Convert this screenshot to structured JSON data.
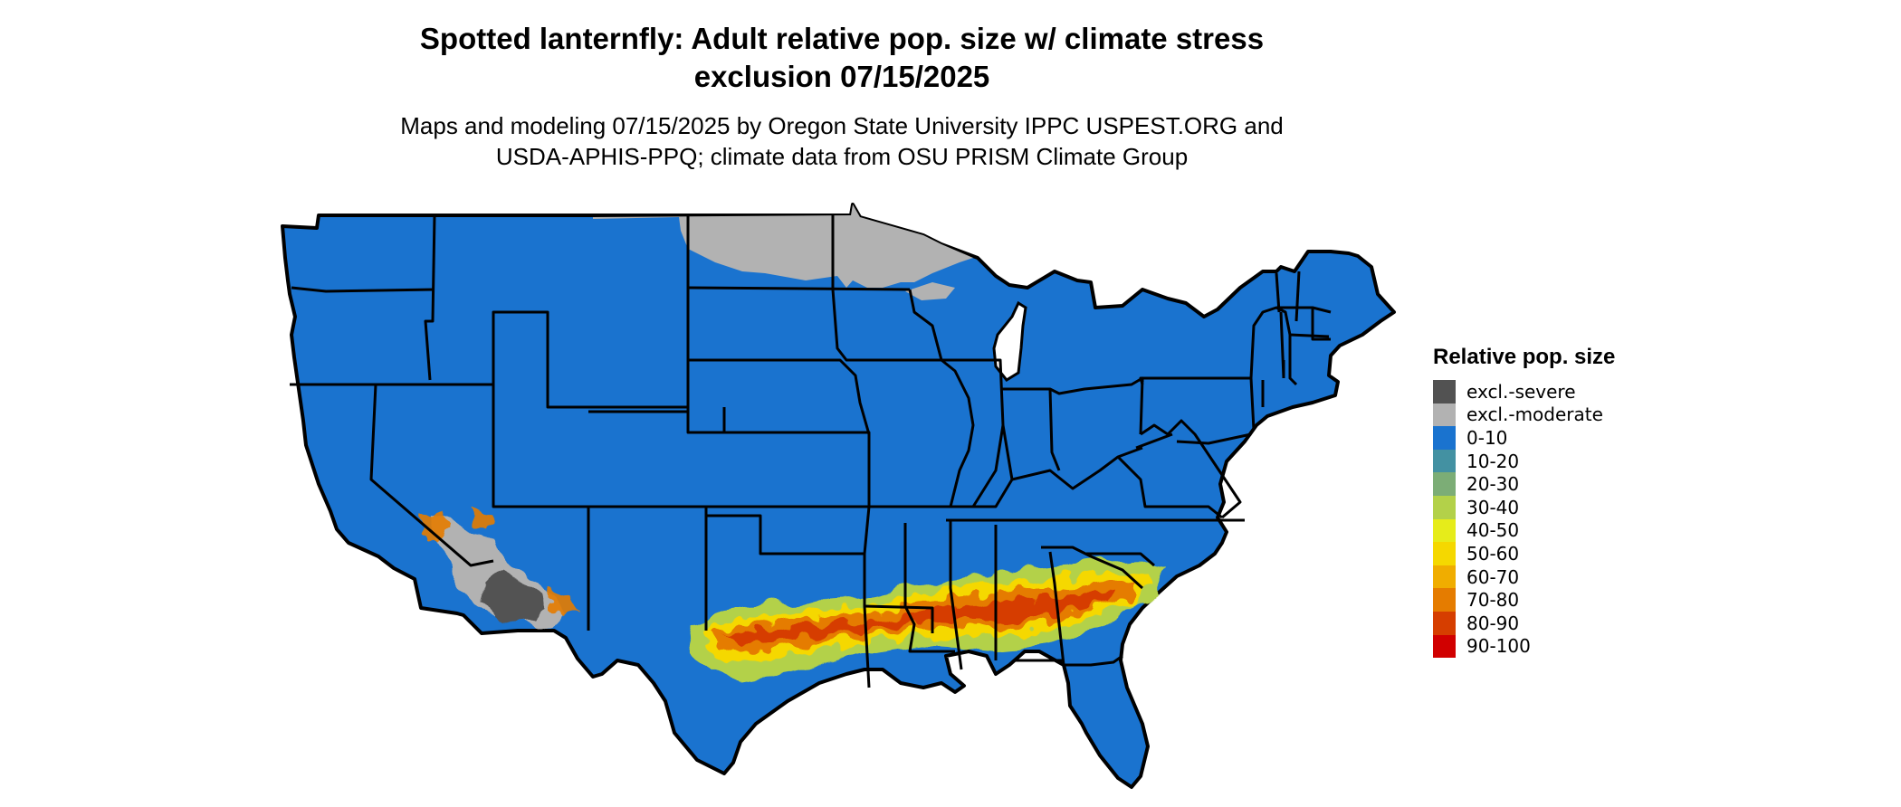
{
  "title_line1": "Spotted lanternfly: Adult relative pop. size w/ climate stress",
  "title_line2": "exclusion 07/15/2025",
  "subtitle_line1": "Maps and modeling 07/15/2025 by Oregon State University IPPC USPEST.ORG and",
  "subtitle_line2": "USDA-APHIS-PPQ; climate data from OSU PRISM Climate Group",
  "legend": {
    "title": "Relative pop. size",
    "items": [
      {
        "label": "excl.-severe",
        "color": "#525252"
      },
      {
        "label": "excl.-moderate",
        "color": "#b2b2b2"
      },
      {
        "label": "0-10",
        "color": "#1a73cf"
      },
      {
        "label": "10-20",
        "color": "#4391a2"
      },
      {
        "label": "20-30",
        "color": "#7cad76"
      },
      {
        "label": "30-40",
        "color": "#b3d149"
      },
      {
        "label": "40-50",
        "color": "#e6ec1a"
      },
      {
        "label": "50-60",
        "color": "#f5d800"
      },
      {
        "label": "60-70",
        "color": "#f0ad00"
      },
      {
        "label": "70-80",
        "color": "#e57c00"
      },
      {
        "label": "80-90",
        "color": "#d63e00"
      },
      {
        "label": "90-100",
        "color": "#d10000"
      }
    ]
  }
}
